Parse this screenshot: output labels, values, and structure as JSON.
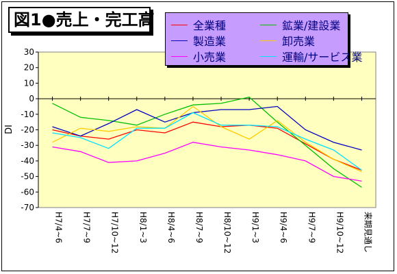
{
  "title": "図1●売上・完工高",
  "chart_data": {
    "type": "line",
    "title": "図1●売上・完工高",
    "ylabel": "DI",
    "xlabel": "",
    "ylim": [
      -70,
      30
    ],
    "yticks": [
      30,
      20,
      10,
      0,
      -10,
      -20,
      -30,
      -40,
      -50,
      -60,
      -70
    ],
    "grid": false,
    "legend_position": "top-right",
    "categories": [
      "H7/4~6",
      "H7/7~9",
      "H7/10~12",
      "H8/1~3",
      "H8/4~6",
      "H8/7~9",
      "H8/10~12",
      "H9/1~3",
      "H9/4~6",
      "H9/7~9",
      "H9/10~12",
      "来期見通し"
    ],
    "series": [
      {
        "name": "全業種",
        "color": "#ff0000",
        "values": [
          -20,
          -24,
          -26,
          -20,
          -22,
          -15,
          -18,
          -17,
          -19,
          -29,
          -39,
          -46
        ]
      },
      {
        "name": "鉱業/建設業",
        "color": "#00c000",
        "values": [
          -3,
          -12,
          -14,
          -17,
          -10,
          -4,
          -3,
          1,
          -15,
          -30,
          -45,
          -57
        ]
      },
      {
        "name": "製造業",
        "color": "#0000c0",
        "values": [
          -18,
          -24,
          -16,
          -7,
          -15,
          -9,
          -7,
          -7,
          -5,
          -20,
          -28,
          -33
        ]
      },
      {
        "name": "卸売業",
        "color": "#ffcc00",
        "values": [
          -28,
          -19,
          -21,
          -18,
          -19,
          -5,
          -18,
          -26,
          -14,
          -28,
          -39,
          -47
        ]
      },
      {
        "name": "小売業",
        "color": "#ff00ff",
        "values": [
          -31,
          -34,
          -41,
          -40,
          -35,
          -28,
          -31,
          -33,
          -36,
          -40,
          -50,
          -53
        ]
      },
      {
        "name": "運輸/サービス業",
        "color": "#00e0ff",
        "values": [
          -22,
          -25,
          -32,
          -19,
          -19,
          -9,
          -17,
          -17,
          -18,
          -26,
          -33,
          -46
        ]
      }
    ]
  }
}
